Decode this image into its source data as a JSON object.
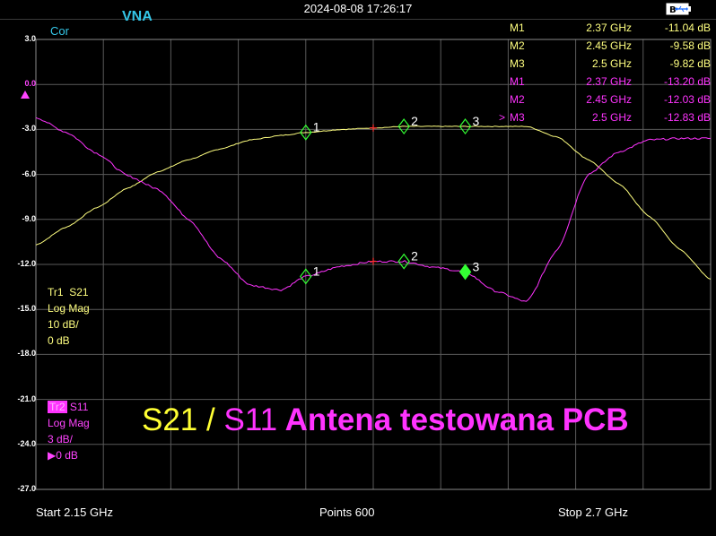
{
  "header": {
    "datetime": "2024-08-08 17:26:17",
    "instrument": "VNA",
    "correction": "Cor"
  },
  "y_axis": {
    "labels": [
      "3.0",
      "0.0",
      "-3.0",
      "-6.0",
      "-9.0",
      "-12.0",
      "-15.0",
      "-18.0",
      "-21.0",
      "-24.0",
      "-27.0"
    ],
    "reference_label": "0.0"
  },
  "marker_table": [
    {
      "cursor": "",
      "name": "M1",
      "freq": "2.37 GHz",
      "value": "-11.04 dB",
      "trace": "S21"
    },
    {
      "cursor": "",
      "name": "M2",
      "freq": "2.45 GHz",
      "value": "-9.58 dB",
      "trace": "S21"
    },
    {
      "cursor": "",
      "name": "M3",
      "freq": "2.5 GHz",
      "value": "-9.82 dB",
      "trace": "S21"
    },
    {
      "cursor": "",
      "name": "M1",
      "freq": "2.37 GHz",
      "value": "-13.20 dB",
      "trace": "S11"
    },
    {
      "cursor": "",
      "name": "M2",
      "freq": "2.45 GHz",
      "value": "-12.03 dB",
      "trace": "S11"
    },
    {
      "cursor": ">",
      "name": "M3",
      "freq": "2.5 GHz",
      "value": "-12.83 dB",
      "trace": "S11"
    }
  ],
  "trace1": {
    "id": "Tr1",
    "param": "S21",
    "format": "Log Mag",
    "scale": "10 dB/",
    "ref": "0 dB",
    "color": "#ffff80"
  },
  "trace2": {
    "id": "Tr2",
    "param": "S11",
    "format": "Log Mag",
    "scale": "3 dB/",
    "ref": "0 dB",
    "color": "#ff33ff"
  },
  "caption": {
    "part1": "S21",
    "sep": " / ",
    "part2": "S11",
    "part3": " Antena testowana PCB"
  },
  "footer": {
    "start": "Start  2.15 GHz",
    "points": "Points  600",
    "stop": "Stop  2.7 GHz"
  },
  "marker_labels": [
    "1",
    "2",
    "3"
  ],
  "colors": {
    "s21": "#ffff80",
    "s11": "#ff33ff",
    "grid": "#5a5a5a",
    "accent": "#35c7e8",
    "marker_active": "#33ff33"
  },
  "icons": {
    "battery": "battery-icon",
    "usb": "usb-icon",
    "ref_arrow": "reference-arrow-icon"
  },
  "chart_data": {
    "type": "line",
    "x_start_ghz": 2.15,
    "x_stop_ghz": 2.7,
    "points": 600,
    "display_ylim": [
      -27,
      3
    ],
    "series": [
      {
        "name": "S21",
        "x": [
          2.15,
          2.175,
          2.2,
          2.225,
          2.25,
          2.275,
          2.3,
          2.325,
          2.35,
          2.37,
          2.4,
          2.425,
          2.45,
          2.475,
          2.5,
          2.525,
          2.55,
          2.575,
          2.6,
          2.625,
          2.65,
          2.675,
          2.7
        ],
        "display_y": [
          -10.7,
          -9.5,
          -8.2,
          -6.9,
          -5.8,
          -5.0,
          -4.3,
          -3.7,
          -3.4,
          -3.2,
          -3.0,
          -2.9,
          -2.8,
          -2.8,
          -2.8,
          -2.8,
          -2.8,
          -3.5,
          -5.0,
          -6.6,
          -8.8,
          -11.0,
          -13.0
        ]
      },
      {
        "name": "S11",
        "x": [
          2.15,
          2.175,
          2.2,
          2.225,
          2.25,
          2.275,
          2.3,
          2.325,
          2.35,
          2.37,
          2.4,
          2.425,
          2.45,
          2.475,
          2.5,
          2.525,
          2.55,
          2.575,
          2.6,
          2.625,
          2.65,
          2.675,
          2.7
        ],
        "display_y": [
          -2.2,
          -3.2,
          -4.6,
          -6.1,
          -7.0,
          -9.0,
          -11.6,
          -13.4,
          -13.7,
          -12.8,
          -12.1,
          -11.8,
          -11.8,
          -12.2,
          -12.5,
          -13.8,
          -14.5,
          -11.0,
          -6.0,
          -4.5,
          -3.7,
          -3.6,
          -3.6
        ]
      }
    ],
    "markers": [
      {
        "label": "1",
        "x": 2.37,
        "s21_db": -11.04,
        "s11_db": -13.2
      },
      {
        "label": "2",
        "x": 2.45,
        "s21_db": -9.58,
        "s11_db": -12.03
      },
      {
        "label": "3",
        "x": 2.5,
        "s21_db": -9.82,
        "s11_db": -12.83
      }
    ]
  }
}
